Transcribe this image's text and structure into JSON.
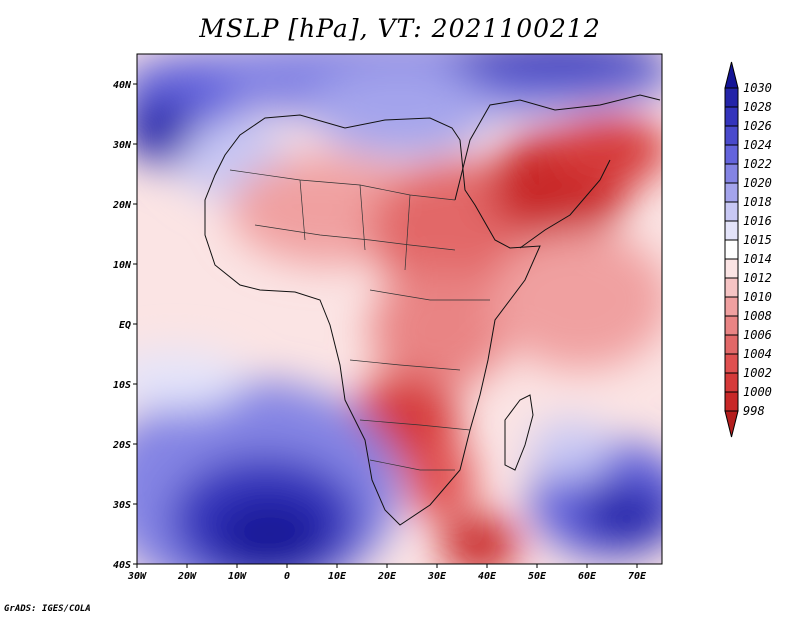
{
  "title": "MSLP [hPa], VT: 2021100212",
  "footer": "GrADS: IGES/COLA",
  "chart_data": {
    "type": "heatmap",
    "variable": "MSLP",
    "units": "hPa",
    "valid_time": "2021100212",
    "x_range_deg": [
      -30,
      75
    ],
    "y_range_deg": [
      -40,
      45
    ],
    "lon_ticks": [
      "30W",
      "20W",
      "10W",
      "0",
      "10E",
      "20E",
      "30E",
      "40E",
      "50E",
      "60E",
      "70E"
    ],
    "lat_ticks": [
      "40S",
      "30S",
      "20S",
      "10S",
      "EQ",
      "10N",
      "20N",
      "30N",
      "40N"
    ],
    "colorbar": {
      "levels": [
        "998",
        "1000",
        "1002",
        "1004",
        "1006",
        "1008",
        "1010",
        "1012",
        "1014",
        "1015",
        "1016",
        "1018",
        "1020",
        "1022",
        "1024",
        "1026",
        "1028",
        "1030"
      ],
      "colors": [
        "#b41e1e",
        "#c82828",
        "#d63a3a",
        "#e05050",
        "#e26868",
        "#e98484",
        "#f0a0a0",
        "#f6c4c4",
        "#fbe4e4",
        "#ffffff",
        "#e4e4fa",
        "#c8c8f4",
        "#a4a4ec",
        "#8484e4",
        "#6464dc",
        "#4a4acc",
        "#3434bc",
        "#2424a8",
        "#141496"
      ]
    }
  }
}
